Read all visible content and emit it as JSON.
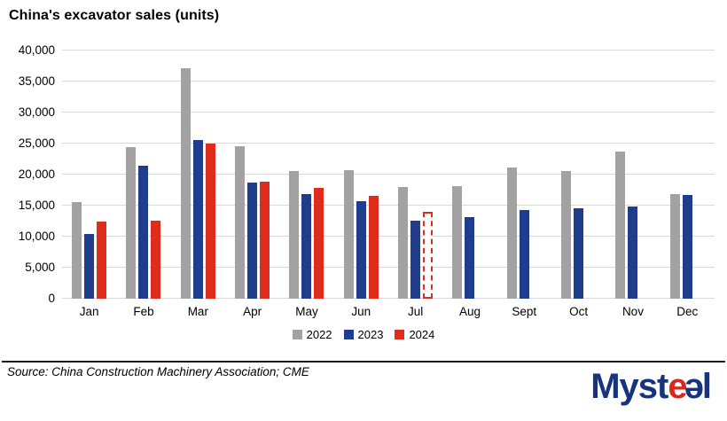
{
  "title": "China's excavator sales (units)",
  "chart_data": {
    "type": "bar",
    "title": "China's excavator sales (units)",
    "categories": [
      "Jan",
      "Feb",
      "Mar",
      "Apr",
      "May",
      "Jun",
      "Jul",
      "Aug",
      "Sept",
      "Oct",
      "Nov",
      "Dec"
    ],
    "series": [
      {
        "name": "2022",
        "color": "#a2a2a2",
        "values": [
          15607,
          24483,
          37085,
          24534,
          20624,
          20761,
          17939,
          18076,
          21187,
          20501,
          23680,
          16869
        ]
      },
      {
        "name": "2023",
        "color": "#203c8c",
        "values": [
          10443,
          21435,
          25578,
          18772,
          16809,
          15766,
          12606,
          13104,
          14283,
          14584,
          14925,
          16698
        ]
      },
      {
        "name": "2024",
        "color": "#df2d1d",
        "values": [
          12376,
          12608,
          24980,
          18822,
          17824,
          16603,
          14000,
          null,
          null,
          null,
          null,
          null
        ],
        "dashed_indices": [
          6
        ],
        "dashed_note": "Jul 2024 bar drawn as dashed outline (estimate)"
      }
    ],
    "ylim": [
      0,
      40000
    ],
    "ytick_interval": 5000,
    "ytick_labels": [
      "0",
      "5,000",
      "10,000",
      "15,000",
      "20,000",
      "25,000",
      "30,000",
      "35,000",
      "40,000"
    ],
    "grid": "horizontal",
    "legend_position": "bottom"
  },
  "legend": {
    "items": [
      {
        "label": "2022",
        "color": "#a2a2a2"
      },
      {
        "label": "2023",
        "color": "#203c8c"
      },
      {
        "label": "2024",
        "color": "#df2d1d"
      }
    ]
  },
  "footer": {
    "source": "Source: China Construction Machinery Association; CME",
    "logo": {
      "text_prefix": "Myst",
      "e_red": "e",
      "e_reversed": "ə",
      "text_suffix": "l"
    }
  }
}
